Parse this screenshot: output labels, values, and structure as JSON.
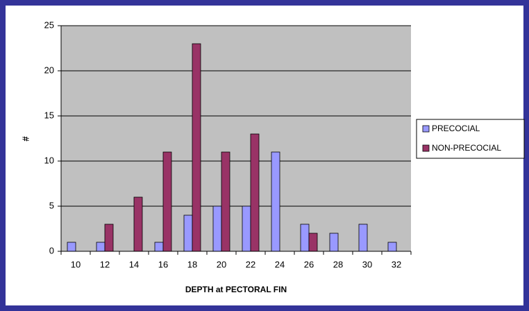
{
  "chart_data": {
    "type": "bar",
    "xlabel": "DEPTH at PECTORAL FIN",
    "ylabel": "#",
    "categories": [
      "10",
      "12",
      "14",
      "16",
      "18",
      "20",
      "22",
      "24",
      "26",
      "28",
      "30",
      "32"
    ],
    "series": [
      {
        "name": "PRECOCIAL",
        "color": "#9999ff",
        "values": [
          1,
          1,
          0,
          1,
          4,
          5,
          5,
          11,
          3,
          2,
          3,
          1
        ]
      },
      {
        "name": "NON-PRECOCIAL",
        "color": "#993366",
        "values": [
          0,
          3,
          6,
          11,
          23,
          11,
          13,
          0,
          2,
          0,
          0,
          0
        ]
      }
    ],
    "ylim": [
      0,
      25
    ],
    "yticks": [
      0,
      5,
      10,
      15,
      20,
      25
    ],
    "grid": true,
    "legend": "right"
  }
}
